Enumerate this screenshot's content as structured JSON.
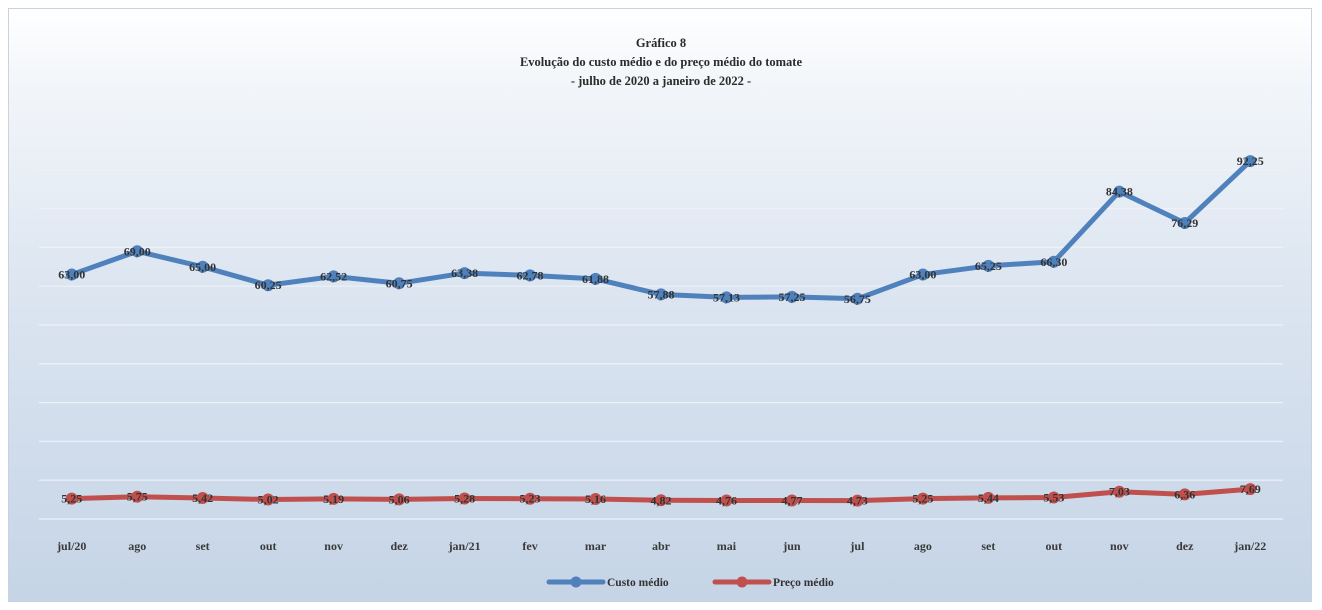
{
  "chart_data": {
    "type": "line",
    "title_lines": [
      "Gráfico 8",
      "Evolução do custo médio e do preço médio do tomate",
      "- julho de 2020 a janeiro de 2022 -"
    ],
    "categories": [
      "jul/20",
      "ago",
      "set",
      "out",
      "nov",
      "dez",
      "jan/21",
      "fev",
      "mar",
      "abr",
      "mai",
      "jun",
      "jul",
      "ago",
      "set",
      "out",
      "nov",
      "dez",
      "jan/22"
    ],
    "series": [
      {
        "name": "Custo médio",
        "color": "#4f81bd",
        "values": [
          63.0,
          69.0,
          65.0,
          60.25,
          62.52,
          60.75,
          63.38,
          62.78,
          61.88,
          57.88,
          57.13,
          57.25,
          56.75,
          63.0,
          65.25,
          66.3,
          84.38,
          76.29,
          92.25
        ],
        "labels": [
          "63,00",
          "69,00",
          "65,00",
          "60,25",
          "62,52",
          "60,75",
          "63,38",
          "62,78",
          "61,88",
          "57,88",
          "57,13",
          "57,25",
          "56,75",
          "63,00",
          "65,25",
          "66,30",
          "84,38",
          "76,29",
          "92,25"
        ]
      },
      {
        "name": "Preço médio",
        "color": "#c0504d",
        "values": [
          5.25,
          5.75,
          5.42,
          5.02,
          5.19,
          5.06,
          5.28,
          5.23,
          5.16,
          4.82,
          4.76,
          4.77,
          4.73,
          5.25,
          5.44,
          5.53,
          7.03,
          6.36,
          7.69
        ],
        "labels": [
          "5,25",
          "5,75",
          "5,42",
          "5,02",
          "5,19",
          "5,06",
          "5,28",
          "5,23",
          "5,16",
          "4,82",
          "4,76",
          "4,77",
          "4,73",
          "5,25",
          "5,44",
          "5,53",
          "7,03",
          "6,36",
          "7,69"
        ]
      }
    ],
    "ylim": [
      0,
      100
    ],
    "y_gridlines": true,
    "y_tick_labels_shown": false,
    "legend_position": "bottom",
    "gridline_color": "#eef2f7"
  }
}
